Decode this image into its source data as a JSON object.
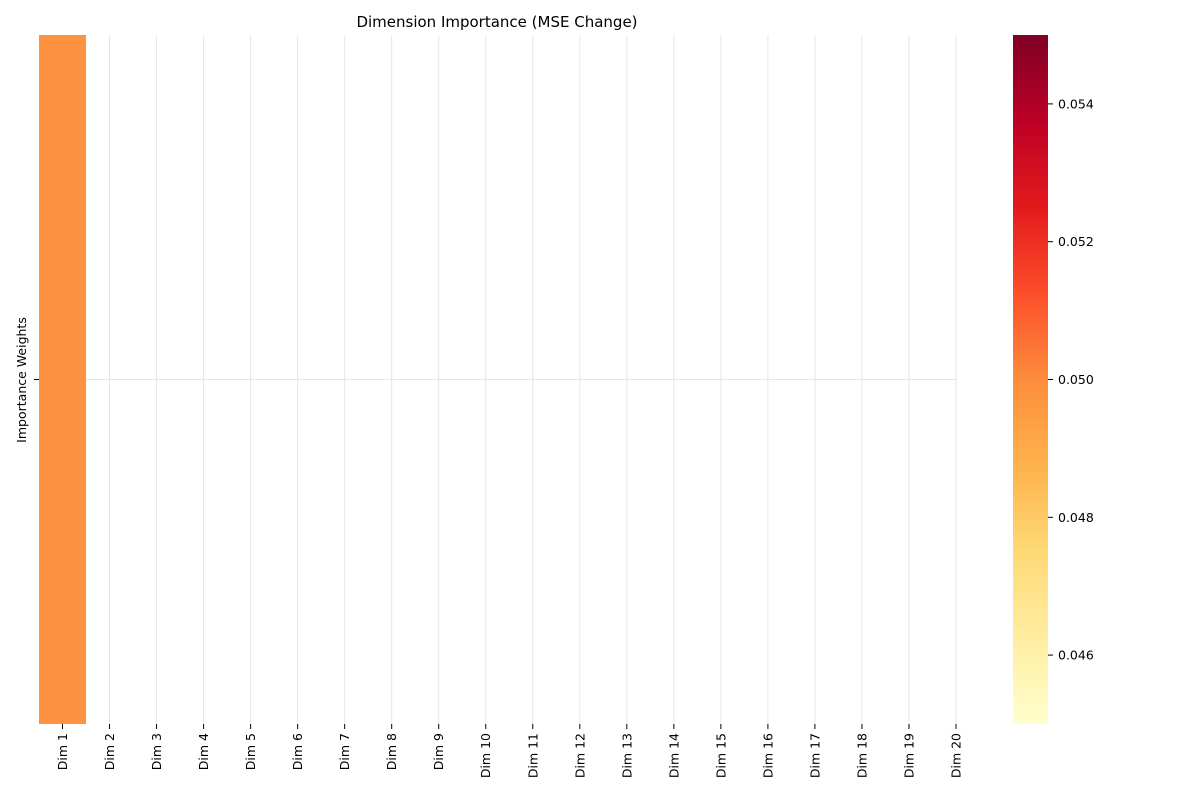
{
  "chart_data": {
    "type": "heatmap",
    "title": "Dimension Importance (MSE Change)",
    "xlabel": "",
    "ylabel": "Importance Weights",
    "x_categories": [
      "Dim 1",
      "Dim 2",
      "Dim 3",
      "Dim 4",
      "Dim 5",
      "Dim 6",
      "Dim 7",
      "Dim 8",
      "Dim 9",
      "Dim 10",
      "Dim 11",
      "Dim 12",
      "Dim 13",
      "Dim 14",
      "Dim 15",
      "Dim 16",
      "Dim 17",
      "Dim 18",
      "Dim 19",
      "Dim 20"
    ],
    "y_categories": [
      ""
    ],
    "values": [
      [
        0.05,
        null,
        null,
        null,
        null,
        null,
        null,
        null,
        null,
        null,
        null,
        null,
        null,
        null,
        null,
        null,
        null,
        null,
        null,
        null
      ]
    ],
    "colorbar": {
      "colormap": "YlOrRd",
      "range": [
        0.045,
        0.055
      ],
      "ticks": [
        0.046,
        0.048,
        0.05,
        0.052,
        0.054
      ],
      "tick_labels": [
        "0.046",
        "0.048",
        "0.050",
        "0.052",
        "0.054"
      ]
    },
    "grid": true,
    "colors": {
      "cell_fill": "#fd9240",
      "grid": "#e6e6e6"
    }
  }
}
